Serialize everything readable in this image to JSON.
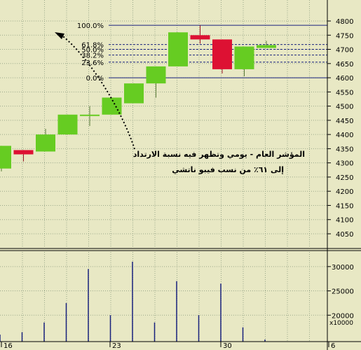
{
  "colors": {
    "background": "#e8e8c4",
    "grid": "#9aa88a",
    "up_candle": "#66cc22",
    "down_candle": "#dd1133",
    "wick": "#557733",
    "fib_line": "#1a237e",
    "volume_bar": "#1a237e",
    "frame": "#000000"
  },
  "chart_data": [
    {
      "type": "candlestick",
      "title": "",
      "ylim": [
        4000,
        4850
      ],
      "y_ticks": [
        4050,
        4100,
        4150,
        4200,
        4250,
        4300,
        4350,
        4400,
        4450,
        4500,
        4550,
        4600,
        4650,
        4700,
        4750,
        4800
      ],
      "grid": true,
      "candles": [
        {
          "open": 4280,
          "high": 4360,
          "low": 4270,
          "close": 4360
        },
        {
          "open": 4345,
          "high": 4345,
          "low": 4305,
          "close": 4330
        },
        {
          "open": 4340,
          "high": 4420,
          "low": 4340,
          "close": 4400
        },
        {
          "open": 4400,
          "high": 4470,
          "low": 4400,
          "close": 4470
        },
        {
          "open": 4470,
          "high": 4500,
          "low": 4430,
          "close": 4470
        },
        {
          "open": 4470,
          "high": 4530,
          "low": 4470,
          "close": 4530
        },
        {
          "open": 4510,
          "high": 4580,
          "low": 4510,
          "close": 4580
        },
        {
          "open": 4580,
          "high": 4640,
          "low": 4530,
          "close": 4640
        },
        {
          "open": 4640,
          "high": 4760,
          "low": 4640,
          "close": 4760
        },
        {
          "open": 4750,
          "high": 4785,
          "low": 4720,
          "close": 4735
        },
        {
          "open": 4735,
          "high": 4735,
          "low": 4615,
          "close": 4630
        },
        {
          "open": 4630,
          "high": 4710,
          "low": 4605,
          "close": 4710
        },
        {
          "open": 4705,
          "high": 4730,
          "low": 4705,
          "close": 4715
        }
      ],
      "fibonacci": {
        "levels": [
          {
            "label": "100.0%",
            "value": 4785
          },
          {
            "label": "61.8%",
            "value": 4717
          },
          {
            "label": "50.0%",
            "value": 4700
          },
          {
            "label": "38.2%",
            "value": 4680
          },
          {
            "label": "23.6%",
            "value": 4655
          },
          {
            "label": "0.0%",
            "value": 4600
          }
        ]
      },
      "annotation": {
        "line1": "المؤشر العام - يومي وتظهر فيه نسبة الارتداد",
        "line2": "إلى ٦١٪ من نسب فيبو ناتشي"
      }
    },
    {
      "type": "bar",
      "title": "",
      "ylim": [
        15000,
        33000
      ],
      "y_ticks": [
        20000,
        25000,
        30000
      ],
      "y_multiplier_label": "x10000",
      "x_tick_labels": [
        "16",
        "23",
        "30",
        "6"
      ],
      "values": [
        16000,
        16500,
        18500,
        22500,
        29500,
        20000,
        31000,
        18500,
        27000,
        20000,
        26500,
        17500,
        15000
      ]
    }
  ]
}
